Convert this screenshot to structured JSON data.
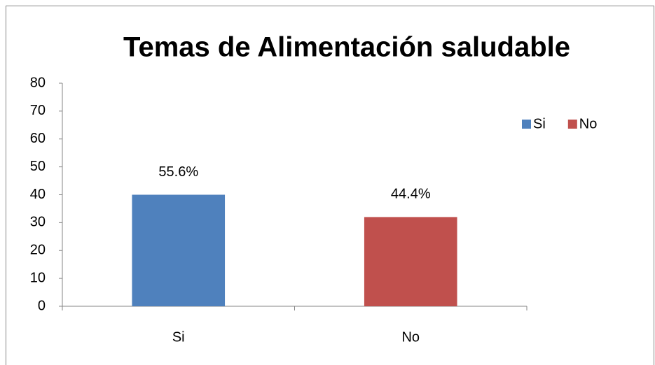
{
  "chart_data": {
    "type": "bar",
    "title": "Temas de Alimentación saludable",
    "categories": [
      "Si",
      "No"
    ],
    "values": [
      40,
      32
    ],
    "colors": [
      "#4f81bd",
      "#c0504d"
    ],
    "annotations": [
      "55.6%",
      "44.4%"
    ],
    "ylim": [
      0,
      80
    ],
    "yticks": [
      0,
      10,
      20,
      30,
      40,
      50,
      60,
      70,
      80
    ],
    "grid": false,
    "legend": "right"
  }
}
